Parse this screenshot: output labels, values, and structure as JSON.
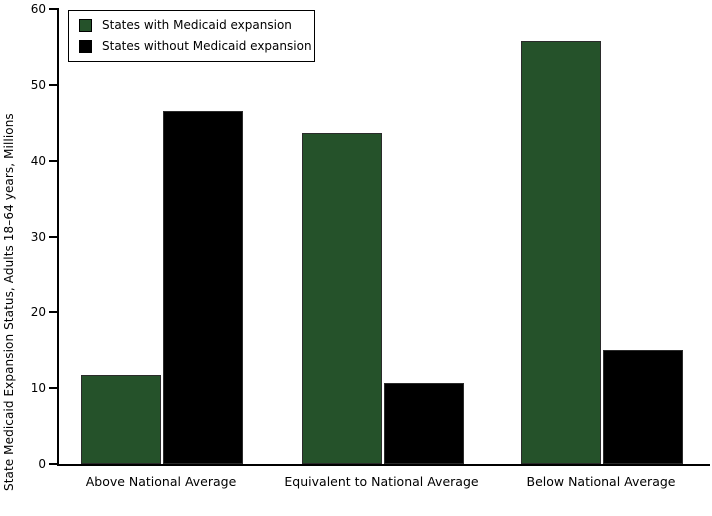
{
  "chart_data": {
    "type": "bar",
    "title": "",
    "categories": [
      "Above National Average",
      "Equivalent to National Average",
      "Below National Average"
    ],
    "series": [
      {
        "name": "States with Medicaid expansion",
        "color": "#25522a",
        "values": [
          11.8,
          43.6,
          55.8
        ]
      },
      {
        "name": "States without Medicaid expansion",
        "color": "#000000",
        "values": [
          46.5,
          10.7,
          15.0
        ]
      }
    ],
    "xlabel": "",
    "ylabel": "State Medicaid Expansion Status, Adults 18–64 years, Millions",
    "ylim": [
      0,
      60
    ],
    "yticks": [
      0,
      10,
      20,
      30,
      40,
      50,
      60
    ],
    "grid": false,
    "legend_position": "upper-left",
    "background": "#ffffff",
    "axis_color": "#000000"
  }
}
